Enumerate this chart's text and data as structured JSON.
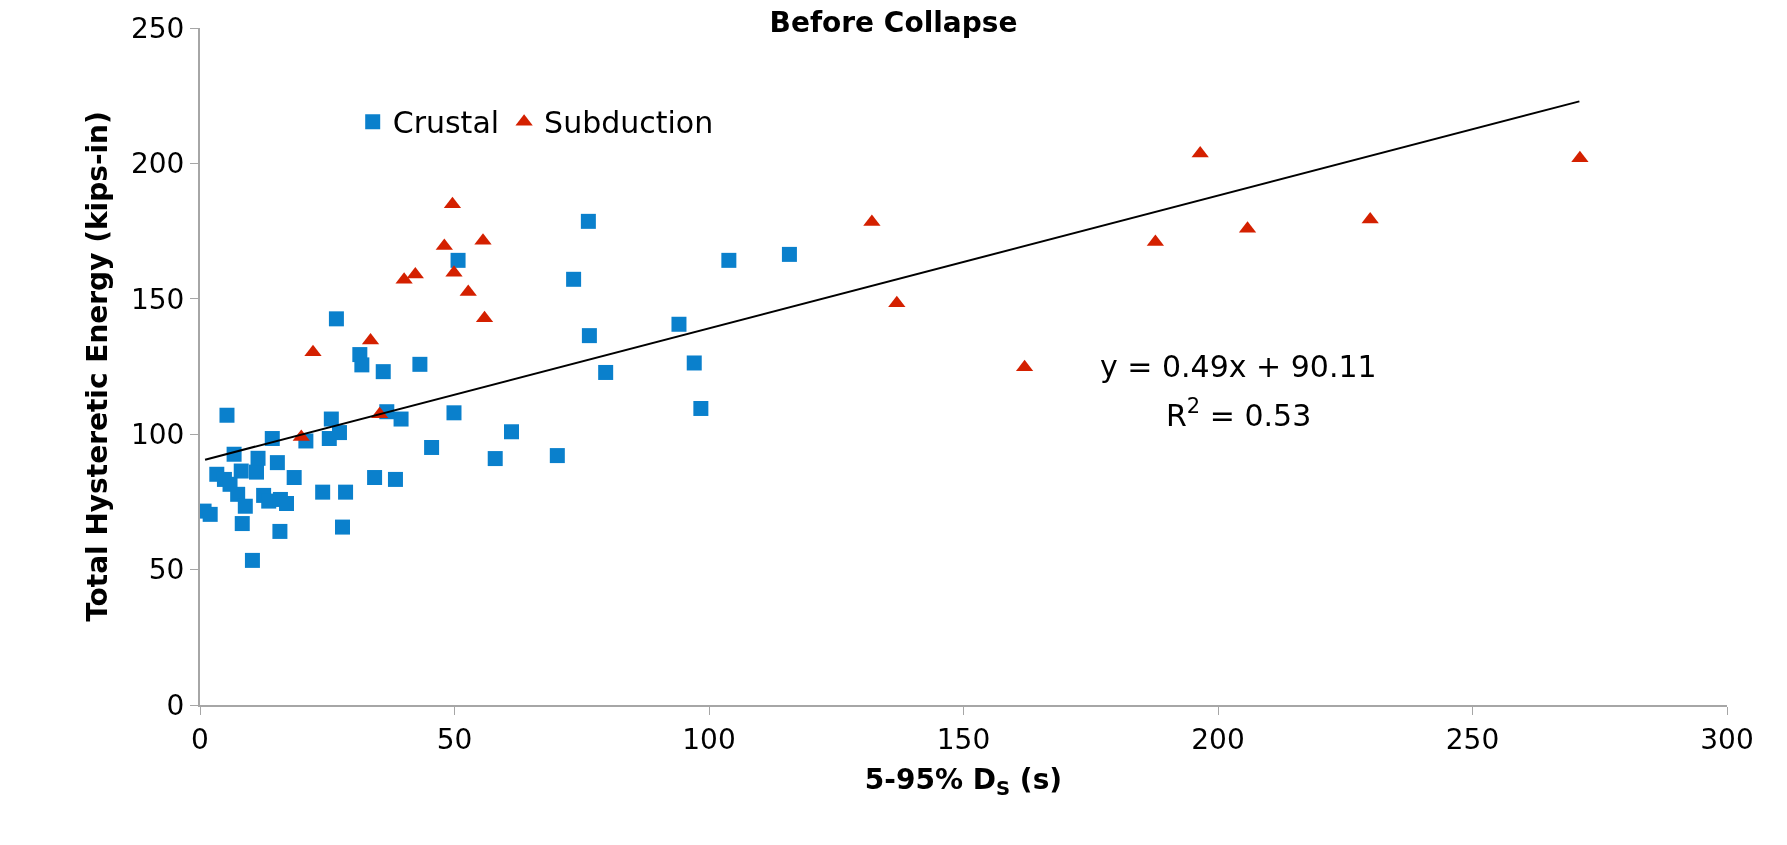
{
  "chart_data": {
    "type": "scatter",
    "title": "Before Collapse",
    "xlabel": "5-95% D$_{S}$ (s)",
    "ylabel": "Total Hysteretic Energy (kips-in)",
    "xlim": [
      0,
      300
    ],
    "xticks": [
      0,
      50,
      100,
      150,
      200,
      250,
      300
    ],
    "ylim": [
      0,
      250
    ],
    "yticks": [
      0,
      50,
      100,
      150,
      200,
      250
    ],
    "legend": "top left",
    "annotations": [
      "y = 0.49x + 90.11",
      "R$^{2}$ = 0.53"
    ],
    "series": [
      {
        "name": "Crustal",
        "color": "#0a80cc",
        "marker": "square",
        "x": [
          0.8,
          2.0,
          3.3,
          4.8,
          5.3,
          5.9,
          6.7,
          7.4,
          8.1,
          8.3,
          8.9,
          10.2,
          10.3,
          11.1,
          11.4,
          12.5,
          13.5,
          14.2,
          15.2,
          15.7,
          15.8,
          17.0,
          18.5,
          20.8,
          24.1,
          25.4,
          25.8,
          26.8,
          27.4,
          28.0,
          28.6,
          31.4,
          31.8,
          34.3,
          36.0,
          36.7,
          38.4,
          39.5,
          43.2,
          45.5,
          49.9,
          50.7,
          58.0,
          61.2,
          70.2,
          73.4,
          76.3,
          76.5,
          79.7,
          94.1,
          97.1,
          98.4,
          103.9,
          115.8
        ],
        "values": [
          71.6,
          70.4,
          85.2,
          83.3,
          107,
          81.5,
          92.6,
          77.8,
          86.4,
          67,
          73.4,
          null,
          53.4,
          86,
          91.1,
          77.4,
          75.3,
          98.4,
          89.5,
          64.1,
          75.9,
          74.4,
          84,
          97.5,
          78.6,
          98.4,
          105.6,
          142.6,
          100.6,
          65.7,
          78.6,
          129.4,
          125.6,
          84,
          123.1,
          108.3,
          83.3,
          105.6,
          125.8,
          95.1,
          107.9,
          164.2,
          91,
          100.9,
          92.1,
          157.2,
          178.6,
          136.4,
          122.8,
          140.6,
          126.3,
          109.5,
          164.2,
          166.4
        ]
      },
      {
        "name": "Subduction",
        "color": "#d42000",
        "marker": "triangle",
        "x": [
          19.9,
          22.2,
          33.5,
          35.3,
          40.1,
          42.3,
          48.0,
          49.6,
          49.9,
          52.7,
          55.6,
          55.9,
          132.0,
          136.9,
          162.0,
          187.7,
          196.5,
          205.8,
          229.9,
          271.1
        ],
        "values": [
          99,
          130.3,
          134.6,
          107.4,
          157,
          159,
          169.5,
          184.9,
          159.6,
          152.5,
          171.4,
          142.8,
          178.4,
          148.4,
          124.7,
          171,
          203.7,
          175.9,
          179.3,
          201.9
        ]
      },
      {
        "type": "line",
        "color": "#000000",
        "marker": "none",
        "line_style": "solid",
        "x": [
          1,
          271
        ],
        "values": [
          90.6,
          222.9
        ]
      }
    ]
  }
}
